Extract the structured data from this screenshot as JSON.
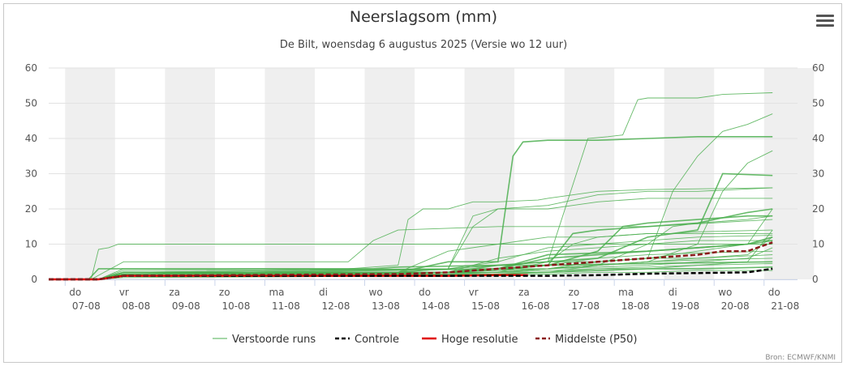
{
  "title": "Neerslagsom (mm)",
  "subtitle": "De Bilt, woensdag 6 augustus 2025 (Versie wo 12 uur)",
  "credit": "Bron: ECMWF/KNMI",
  "menu_icon": "hamburger-menu-icon",
  "chart_data": {
    "type": "line",
    "ylim": [
      0,
      60
    ],
    "yticks": [
      0,
      10,
      20,
      30,
      40,
      50,
      60
    ],
    "xlim": [
      0,
      15
    ],
    "x_unit": "days from do 07-08",
    "xticks": [
      {
        "day": "do",
        "date": "07-08"
      },
      {
        "day": "vr",
        "date": "08-08"
      },
      {
        "day": "za",
        "date": "09-08"
      },
      {
        "day": "zo",
        "date": "10-08"
      },
      {
        "day": "ma",
        "date": "11-08"
      },
      {
        "day": "di",
        "date": "12-08"
      },
      {
        "day": "wo",
        "date": "13-08"
      },
      {
        "day": "do",
        "date": "14-08"
      },
      {
        "day": "vr",
        "date": "15-08"
      },
      {
        "day": "za",
        "date": "16-08"
      },
      {
        "day": "zo",
        "date": "17-08"
      },
      {
        "day": "ma",
        "date": "18-08"
      },
      {
        "day": "di",
        "date": "19-08"
      },
      {
        "day": "wo",
        "date": "20-08"
      },
      {
        "day": "do",
        "date": "21-08"
      }
    ],
    "legend": [
      {
        "name": "Verstoorde runs",
        "color": "#4caf50",
        "style": "solid"
      },
      {
        "name": "Controle",
        "color": "#000000",
        "style": "dashed"
      },
      {
        "name": "Hoge resolutie",
        "color": "#e00000",
        "style": "solid"
      },
      {
        "name": "Middelste (P50)",
        "color": "#8b1a1a",
        "style": "dashed"
      }
    ],
    "ensemble_color": "#4caf50",
    "ensemble": [
      [
        [
          0,
          0
        ],
        [
          0.8,
          0
        ],
        [
          1.0,
          3
        ],
        [
          1.3,
          3
        ],
        [
          6.5,
          3
        ],
        [
          7,
          3.5
        ],
        [
          9,
          4
        ],
        [
          10,
          4
        ],
        [
          12,
          4.5
        ],
        [
          14.5,
          5
        ]
      ],
      [
        [
          0,
          0
        ],
        [
          0.85,
          0
        ],
        [
          1.0,
          8.5
        ],
        [
          1.2,
          9
        ],
        [
          1.4,
          10
        ],
        [
          6,
          10
        ],
        [
          6.5,
          10
        ],
        [
          7,
          10
        ],
        [
          14.5,
          10
        ]
      ],
      [
        [
          0,
          0
        ],
        [
          0.85,
          0
        ],
        [
          1.5,
          5
        ],
        [
          6,
          5
        ],
        [
          6.5,
          11
        ],
        [
          7,
          14
        ],
        [
          8,
          14.5
        ],
        [
          9,
          15
        ],
        [
          10,
          15
        ],
        [
          11,
          15
        ],
        [
          12,
          15
        ],
        [
          14.5,
          17
        ]
      ],
      [
        [
          0,
          0
        ],
        [
          1.0,
          0
        ],
        [
          1.5,
          3
        ],
        [
          6,
          3
        ],
        [
          7,
          4
        ],
        [
          7.2,
          17
        ],
        [
          7.5,
          20
        ],
        [
          8,
          20
        ],
        [
          8.5,
          22
        ],
        [
          9,
          22
        ],
        [
          9.8,
          22.5
        ],
        [
          10,
          23
        ],
        [
          11,
          25
        ],
        [
          12,
          25.5
        ],
        [
          14.5,
          26
        ]
      ],
      [
        [
          0,
          0
        ],
        [
          1.0,
          0
        ],
        [
          1.5,
          2
        ],
        [
          7,
          2
        ],
        [
          8,
          5
        ],
        [
          9,
          5
        ],
        [
          9.3,
          35
        ],
        [
          9.5,
          39
        ],
        [
          10,
          39.5
        ],
        [
          11,
          39.5
        ],
        [
          12,
          40
        ],
        [
          13,
          40.5
        ],
        [
          14.5,
          40.5
        ]
      ],
      [
        [
          0,
          0
        ],
        [
          1.0,
          0
        ],
        [
          1.5,
          2
        ],
        [
          7,
          2
        ],
        [
          8,
          3
        ],
        [
          9,
          4
        ],
        [
          10,
          5
        ],
        [
          10.8,
          40
        ],
        [
          11.2,
          40.5
        ],
        [
          11.5,
          41
        ],
        [
          11.8,
          51
        ],
        [
          12,
          51.5
        ],
        [
          13,
          51.5
        ],
        [
          13.5,
          52.5
        ],
        [
          14.5,
          53
        ]
      ],
      [
        [
          0,
          0
        ],
        [
          1.0,
          0
        ],
        [
          1.5,
          2
        ],
        [
          8,
          2
        ],
        [
          9,
          3
        ],
        [
          10,
          3
        ],
        [
          11,
          5
        ],
        [
          12,
          6
        ],
        [
          12.5,
          25
        ],
        [
          13,
          35
        ],
        [
          13.5,
          42
        ],
        [
          14,
          44
        ],
        [
          14.5,
          47
        ]
      ],
      [
        [
          0,
          0
        ],
        [
          1.0,
          0
        ],
        [
          1.5,
          1.5
        ],
        [
          8,
          2
        ],
        [
          9,
          3
        ],
        [
          10,
          3
        ],
        [
          11,
          4
        ],
        [
          12,
          5
        ],
        [
          13,
          10
        ],
        [
          13.5,
          25
        ],
        [
          14,
          33
        ],
        [
          14.5,
          36.5
        ]
      ],
      [
        [
          0,
          0
        ],
        [
          1.0,
          0
        ],
        [
          1.5,
          1.5
        ],
        [
          8,
          2
        ],
        [
          9,
          4
        ],
        [
          10,
          5
        ],
        [
          11,
          6
        ],
        [
          12,
          12
        ],
        [
          13,
          14
        ],
        [
          13.5,
          30
        ],
        [
          14.5,
          29.5
        ]
      ],
      [
        [
          0,
          0
        ],
        [
          1.0,
          0
        ],
        [
          1.5,
          2
        ],
        [
          8,
          3
        ],
        [
          8.5,
          15
        ],
        [
          9,
          20
        ],
        [
          10,
          21
        ],
        [
          11,
          24
        ],
        [
          12,
          25
        ],
        [
          13,
          25
        ],
        [
          14.5,
          26
        ]
      ],
      [
        [
          0,
          0
        ],
        [
          1.0,
          0
        ],
        [
          1.5,
          2
        ],
        [
          7,
          2
        ],
        [
          8,
          3
        ],
        [
          8.5,
          18
        ],
        [
          9,
          20
        ],
        [
          10,
          20
        ],
        [
          11,
          22
        ],
        [
          12,
          23
        ],
        [
          13,
          23
        ],
        [
          14.5,
          23
        ]
      ],
      [
        [
          0,
          0
        ],
        [
          1.0,
          0
        ],
        [
          1.5,
          2
        ],
        [
          9,
          2
        ],
        [
          10,
          5
        ],
        [
          10.5,
          10
        ],
        [
          11,
          12
        ],
        [
          12,
          13
        ],
        [
          12.5,
          13
        ],
        [
          13,
          13.5
        ],
        [
          14.5,
          14
        ]
      ],
      [
        [
          0,
          0
        ],
        [
          1.0,
          0
        ],
        [
          1.5,
          1.5
        ],
        [
          9,
          3
        ],
        [
          10,
          4
        ],
        [
          11,
          8
        ],
        [
          11.5,
          15
        ],
        [
          12,
          16
        ],
        [
          13,
          17
        ],
        [
          14,
          18
        ],
        [
          14.5,
          18
        ]
      ],
      [
        [
          0,
          0
        ],
        [
          1.0,
          0
        ],
        [
          1.5,
          1
        ],
        [
          9,
          2
        ],
        [
          10,
          3
        ],
        [
          11,
          5
        ],
        [
          12,
          6
        ],
        [
          13,
          8
        ],
        [
          14,
          10
        ],
        [
          14.5,
          20
        ]
      ],
      [
        [
          0,
          0
        ],
        [
          1.0,
          0
        ],
        [
          1.5,
          1
        ],
        [
          9,
          2
        ],
        [
          10,
          3
        ],
        [
          11,
          4
        ],
        [
          12,
          5
        ],
        [
          13,
          6
        ],
        [
          14,
          7
        ],
        [
          14.5,
          12
        ]
      ],
      [
        [
          0,
          0
        ],
        [
          1.0,
          0
        ],
        [
          1.5,
          2
        ],
        [
          7,
          2
        ],
        [
          7.5,
          5
        ],
        [
          8,
          8
        ],
        [
          9,
          10
        ],
        [
          10,
          12
        ],
        [
          11,
          12
        ],
        [
          12,
          13
        ],
        [
          13,
          13
        ],
        [
          14.5,
          13
        ]
      ],
      [
        [
          0,
          0
        ],
        [
          1.0,
          0
        ],
        [
          1.5,
          1
        ],
        [
          8,
          2
        ],
        [
          9,
          3
        ],
        [
          10,
          6
        ],
        [
          11,
          7
        ],
        [
          12,
          8
        ],
        [
          13,
          9
        ],
        [
          14,
          10
        ],
        [
          14.5,
          11
        ]
      ],
      [
        [
          0,
          0
        ],
        [
          1.0,
          0
        ],
        [
          1.5,
          1
        ],
        [
          8,
          1.5
        ],
        [
          9,
          2
        ],
        [
          10,
          3
        ],
        [
          11,
          4
        ],
        [
          12,
          5
        ],
        [
          13,
          5.5
        ],
        [
          14.5,
          6
        ]
      ],
      [
        [
          0,
          0
        ],
        [
          1.0,
          0
        ],
        [
          1.5,
          1.5
        ],
        [
          8,
          2
        ],
        [
          9,
          2.5
        ],
        [
          10,
          4
        ],
        [
          11,
          6
        ],
        [
          12,
          7
        ],
        [
          13,
          7.5
        ],
        [
          14.5,
          8
        ]
      ],
      [
        [
          0,
          0
        ],
        [
          1.0,
          0
        ],
        [
          1.5,
          1
        ],
        [
          8,
          1.5
        ],
        [
          9,
          2
        ],
        [
          10,
          2.5
        ],
        [
          11,
          3
        ],
        [
          12,
          3.5
        ],
        [
          13,
          4
        ],
        [
          14.5,
          4.5
        ]
      ],
      [
        [
          0,
          0
        ],
        [
          1.0,
          0
        ],
        [
          1.5,
          1
        ],
        [
          8,
          1
        ],
        [
          9,
          1.5
        ],
        [
          10,
          2
        ],
        [
          11,
          2.5
        ],
        [
          12,
          3
        ],
        [
          13,
          3
        ],
        [
          14.5,
          3.5
        ]
      ],
      [
        [
          0,
          0
        ],
        [
          1.0,
          0
        ],
        [
          1.5,
          0.5
        ],
        [
          8,
          1
        ],
        [
          9,
          1
        ],
        [
          10,
          1.5
        ],
        [
          11,
          2
        ],
        [
          12,
          2
        ],
        [
          13,
          2.5
        ],
        [
          14.5,
          2.5
        ]
      ],
      [
        [
          0,
          0
        ],
        [
          1.0,
          0
        ],
        [
          1.5,
          2
        ],
        [
          8,
          3
        ],
        [
          9,
          5
        ],
        [
          10,
          9
        ],
        [
          11,
          10
        ],
        [
          12,
          11
        ],
        [
          13,
          12
        ],
        [
          14.5,
          12.5
        ]
      ],
      [
        [
          0,
          0
        ],
        [
          1.0,
          0
        ],
        [
          1.5,
          1
        ],
        [
          7,
          1.5
        ],
        [
          8,
          2
        ],
        [
          9,
          6
        ],
        [
          10,
          8
        ],
        [
          11,
          9
        ],
        [
          12,
          10
        ],
        [
          13,
          11
        ],
        [
          14.5,
          11
        ]
      ],
      [
        [
          0,
          0
        ],
        [
          1.0,
          0
        ],
        [
          1.5,
          1.5
        ],
        [
          8,
          2
        ],
        [
          9,
          3
        ],
        [
          10,
          7
        ],
        [
          11,
          7.5
        ],
        [
          12,
          8
        ],
        [
          13,
          9
        ],
        [
          14,
          10
        ],
        [
          14.5,
          12
        ]
      ],
      [
        [
          0,
          0
        ],
        [
          1.0,
          0
        ],
        [
          1.5,
          2.5
        ],
        [
          8,
          3
        ],
        [
          9,
          4
        ],
        [
          10,
          5
        ],
        [
          11,
          5
        ],
        [
          12,
          6
        ],
        [
          13,
          6
        ],
        [
          14.5,
          7
        ]
      ],
      [
        [
          0,
          0
        ],
        [
          1.0,
          0
        ],
        [
          1.5,
          1
        ],
        [
          9,
          1.5
        ],
        [
          10,
          2
        ],
        [
          11,
          4
        ],
        [
          12,
          10
        ],
        [
          12.5,
          15
        ],
        [
          13,
          16
        ],
        [
          14,
          17
        ],
        [
          14.5,
          18
        ]
      ],
      [
        [
          0,
          0
        ],
        [
          1.0,
          0
        ],
        [
          1.5,
          1
        ],
        [
          9,
          2
        ],
        [
          10,
          2
        ],
        [
          11,
          3
        ],
        [
          12,
          3
        ],
        [
          13,
          4
        ],
        [
          14,
          5
        ],
        [
          14.5,
          14
        ]
      ],
      [
        [
          0,
          0
        ],
        [
          1.0,
          0
        ],
        [
          1.5,
          1.5
        ],
        [
          8,
          2
        ],
        [
          9,
          3
        ],
        [
          10,
          4
        ],
        [
          10.5,
          13
        ],
        [
          11,
          14
        ],
        [
          12,
          15
        ],
        [
          13,
          16
        ],
        [
          14,
          19
        ],
        [
          14.5,
          20
        ]
      ],
      [
        [
          0,
          0
        ],
        [
          1.0,
          0
        ],
        [
          1.5,
          2
        ],
        [
          8,
          2
        ],
        [
          9,
          2.5
        ],
        [
          10,
          3
        ],
        [
          11,
          3.5
        ],
        [
          12,
          4
        ],
        [
          13,
          5
        ],
        [
          14,
          6
        ],
        [
          14.5,
          9
        ]
      ]
    ],
    "controle": [
      [
        0,
        0
      ],
      [
        1.0,
        0
      ],
      [
        1.5,
        1
      ],
      [
        9,
        1
      ],
      [
        10,
        1
      ],
      [
        11,
        1.2
      ],
      [
        12,
        1.6
      ],
      [
        13,
        1.8
      ],
      [
        14,
        2
      ],
      [
        14.5,
        3
      ]
    ],
    "hoge_resolutie": [
      [
        0,
        0
      ],
      [
        1.0,
        0
      ],
      [
        1.5,
        1
      ],
      [
        8,
        1
      ],
      [
        9,
        1.2
      ],
      [
        9.6,
        1.2
      ]
    ],
    "p50": [
      [
        0,
        0
      ],
      [
        1.0,
        0
      ],
      [
        1.5,
        1
      ],
      [
        7,
        1.5
      ],
      [
        8,
        2
      ],
      [
        9,
        3
      ],
      [
        10,
        4
      ],
      [
        11,
        5
      ],
      [
        12,
        6
      ],
      [
        13,
        7
      ],
      [
        13.5,
        8
      ],
      [
        14,
        8
      ],
      [
        14.5,
        10.5
      ]
    ]
  }
}
